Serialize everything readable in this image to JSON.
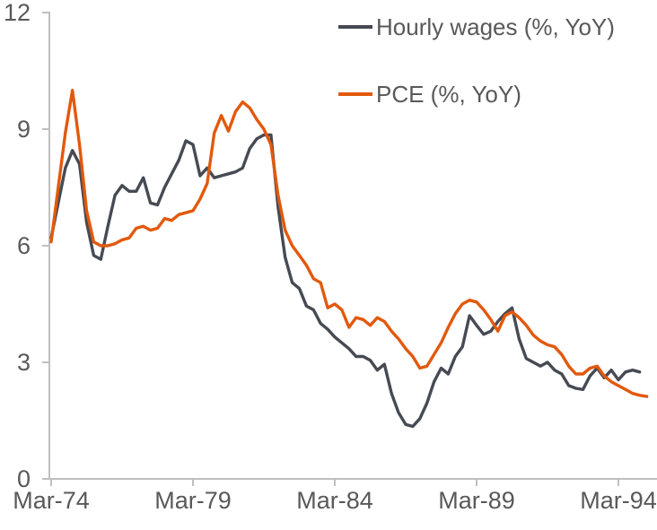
{
  "chart_data": {
    "type": "line",
    "title": "",
    "x_axis": {
      "start": "Mar-74",
      "end_wages": "Dec-94",
      "end_pce": "Mar-95",
      "frequency": "quarterly",
      "tick_labels": [
        "Mar-74",
        "Mar-79",
        "Mar-84",
        "Mar-89",
        "Mar-94"
      ]
    },
    "y_axis": {
      "range": [
        0,
        12
      ],
      "tick_labels": [
        "12",
        "9",
        "6",
        "3",
        "0"
      ],
      "tick_values": [
        12,
        9,
        6,
        3,
        0
      ]
    },
    "grid": "off",
    "legend_position": "top-right-inside",
    "series": [
      {
        "name": "Hourly wages (%, YoY)",
        "color": "#464a53",
        "values": [
          6.2,
          7.1,
          8.0,
          8.45,
          8.1,
          6.6,
          5.75,
          5.65,
          6.5,
          7.3,
          7.55,
          7.4,
          7.4,
          7.75,
          7.1,
          7.05,
          7.5,
          7.85,
          8.2,
          8.7,
          8.6,
          7.8,
          8.0,
          7.75,
          7.8,
          7.85,
          7.9,
          8.0,
          8.5,
          8.75,
          8.85,
          8.85,
          7.0,
          5.7,
          5.05,
          4.9,
          4.45,
          4.35,
          4.0,
          3.85,
          3.65,
          3.5,
          3.35,
          3.15,
          3.15,
          3.05,
          2.8,
          2.95,
          2.2,
          1.7,
          1.4,
          1.35,
          1.55,
          1.95,
          2.5,
          2.85,
          2.7,
          3.15,
          3.4,
          4.2,
          3.95,
          3.72,
          3.8,
          4.05,
          4.25,
          4.4,
          3.6,
          3.1,
          3.0,
          2.9,
          3.0,
          2.8,
          2.7,
          2.4,
          2.33,
          2.3,
          2.65,
          2.85,
          2.6,
          2.8,
          2.55,
          2.75,
          2.8,
          2.75
        ]
      },
      {
        "name": "PCE (%, YoY)",
        "color": "#e2590d",
        "values": [
          6.1,
          7.5,
          8.9,
          10.0,
          8.6,
          6.9,
          6.1,
          6.0,
          6.0,
          6.05,
          6.15,
          6.2,
          6.45,
          6.5,
          6.4,
          6.45,
          6.7,
          6.65,
          6.8,
          6.85,
          6.9,
          7.2,
          7.6,
          8.9,
          9.35,
          8.95,
          9.45,
          9.7,
          9.55,
          9.25,
          9.0,
          8.6,
          7.3,
          6.4,
          6.0,
          5.75,
          5.5,
          5.15,
          5.05,
          4.4,
          4.5,
          4.35,
          3.9,
          4.15,
          4.1,
          3.95,
          4.15,
          4.05,
          3.8,
          3.6,
          3.35,
          3.15,
          2.85,
          2.9,
          3.2,
          3.5,
          3.9,
          4.25,
          4.5,
          4.6,
          4.55,
          4.35,
          4.1,
          3.8,
          4.2,
          4.3,
          4.15,
          3.95,
          3.7,
          3.55,
          3.45,
          3.4,
          3.2,
          2.9,
          2.7,
          2.7,
          2.85,
          2.9,
          2.65,
          2.5,
          2.4,
          2.3,
          2.2,
          2.15,
          2.12
        ]
      }
    ]
  },
  "colors": {
    "axis": "#bfbfbf",
    "text": "#595959",
    "background": "#ffffff"
  }
}
